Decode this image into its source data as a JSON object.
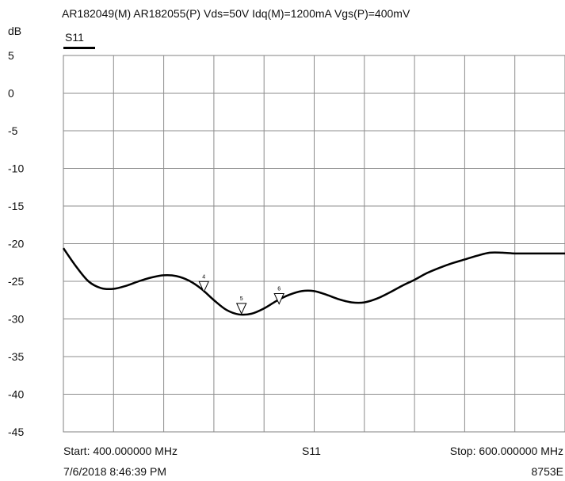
{
  "header": {
    "title": "AR182049(M) AR182055(P) Vds=50V Idq(M)=1200mA Vgs(P)=400mV",
    "y_unit": "dB",
    "legend_label": "S11"
  },
  "footer": {
    "start": "Start: 400.000000 MHz",
    "center": "S11",
    "stop": "Stop: 600.000000 MHz",
    "timestamp": "7/6/2018 8:46:39 PM",
    "model": "8753E"
  },
  "chart_data": {
    "type": "line",
    "title": "AR182049(M) AR182055(P) Vds=50V Idq(M)=1200mA Vgs(P)=400mV",
    "xlabel": "",
    "ylabel": "dB",
    "xlim": [
      400,
      600
    ],
    "ylim": [
      -45,
      5
    ],
    "x_divisions": 10,
    "y_ticks": [
      5,
      0,
      -5,
      -10,
      -15,
      -20,
      -25,
      -30,
      -35,
      -40,
      -45
    ],
    "grid": true,
    "legend_position": "top-left",
    "series": [
      {
        "name": "S11",
        "color": "#000000",
        "x": [
          400,
          405,
          410,
          415,
          420,
          425,
          430,
          435,
          440,
          445,
          450,
          455,
          460,
          465,
          470,
          475,
          480,
          485,
          490,
          495,
          500,
          505,
          510,
          515,
          520,
          525,
          530,
          535,
          540,
          545,
          550,
          555,
          560,
          565,
          570,
          575,
          580,
          585,
          590,
          595,
          600
        ],
        "values": [
          -20.6,
          -23.0,
          -25.0,
          -25.9,
          -26.0,
          -25.6,
          -25.0,
          -24.5,
          -24.2,
          -24.3,
          -24.9,
          -26.0,
          -27.5,
          -28.8,
          -29.4,
          -29.3,
          -28.6,
          -27.6,
          -26.8,
          -26.3,
          -26.3,
          -26.8,
          -27.4,
          -27.8,
          -27.8,
          -27.3,
          -26.5,
          -25.6,
          -24.8,
          -23.9,
          -23.2,
          -22.6,
          -22.1,
          -21.6,
          -21.2,
          -21.2,
          -21.3,
          -21.3,
          -21.3,
          -21.3,
          -21.3
        ]
      }
    ],
    "markers": [
      {
        "label": "4",
        "x": 456,
        "y": -26.4
      },
      {
        "label": "5",
        "x": 471,
        "y": -29.3
      },
      {
        "label": "6",
        "x": 486,
        "y": -28.0
      }
    ]
  }
}
